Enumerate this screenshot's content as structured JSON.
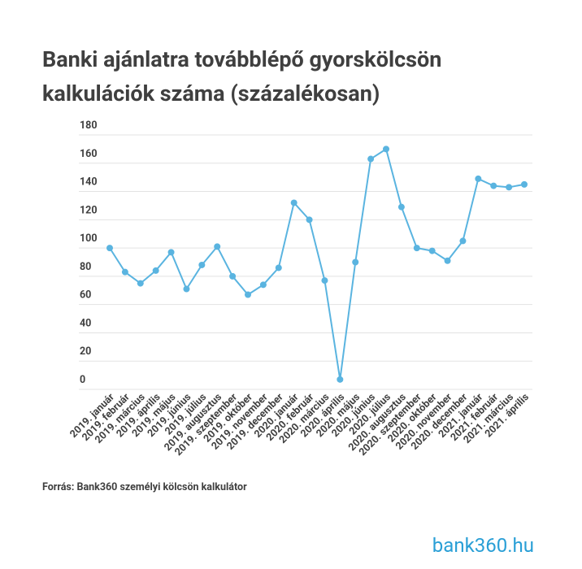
{
  "chart_data": {
    "type": "line",
    "title": "Banki ajánlatra továbblépő gyorskölcsön kalkulációk száma (százalékosan)",
    "categories": [
      "2019. január",
      "2019. február",
      "2019. március",
      "2019. április",
      "2019. május",
      "2019. június",
      "2019. július",
      "2019. augusztus",
      "2019. szeptember",
      "2019. október",
      "2019. november",
      "2019. december",
      "2020. január",
      "2020. február",
      "2020. március",
      "2020. április",
      "2020. május",
      "2020. június",
      "2020. július",
      "2020. augusztus",
      "2020. szeptember",
      "2020. október",
      "2020. november",
      "2020. december",
      "2021. január",
      "2021. február",
      "2021. március",
      "2021. április"
    ],
    "values": [
      100,
      83,
      75,
      84,
      97,
      71,
      88,
      101,
      80,
      67,
      74,
      86,
      132,
      120,
      77,
      7,
      90,
      163,
      170,
      129,
      100,
      98,
      91,
      105,
      149,
      144,
      143,
      145
    ],
    "color": "#5ab4e0",
    "ylim": [
      0,
      180
    ],
    "yticks": [
      0,
      20,
      40,
      60,
      80,
      100,
      120,
      140,
      160,
      180
    ],
    "grid": true,
    "source": "Forrás: Bank360 személyi kölcsön kalkulátor",
    "logo": "bank360.hu"
  }
}
